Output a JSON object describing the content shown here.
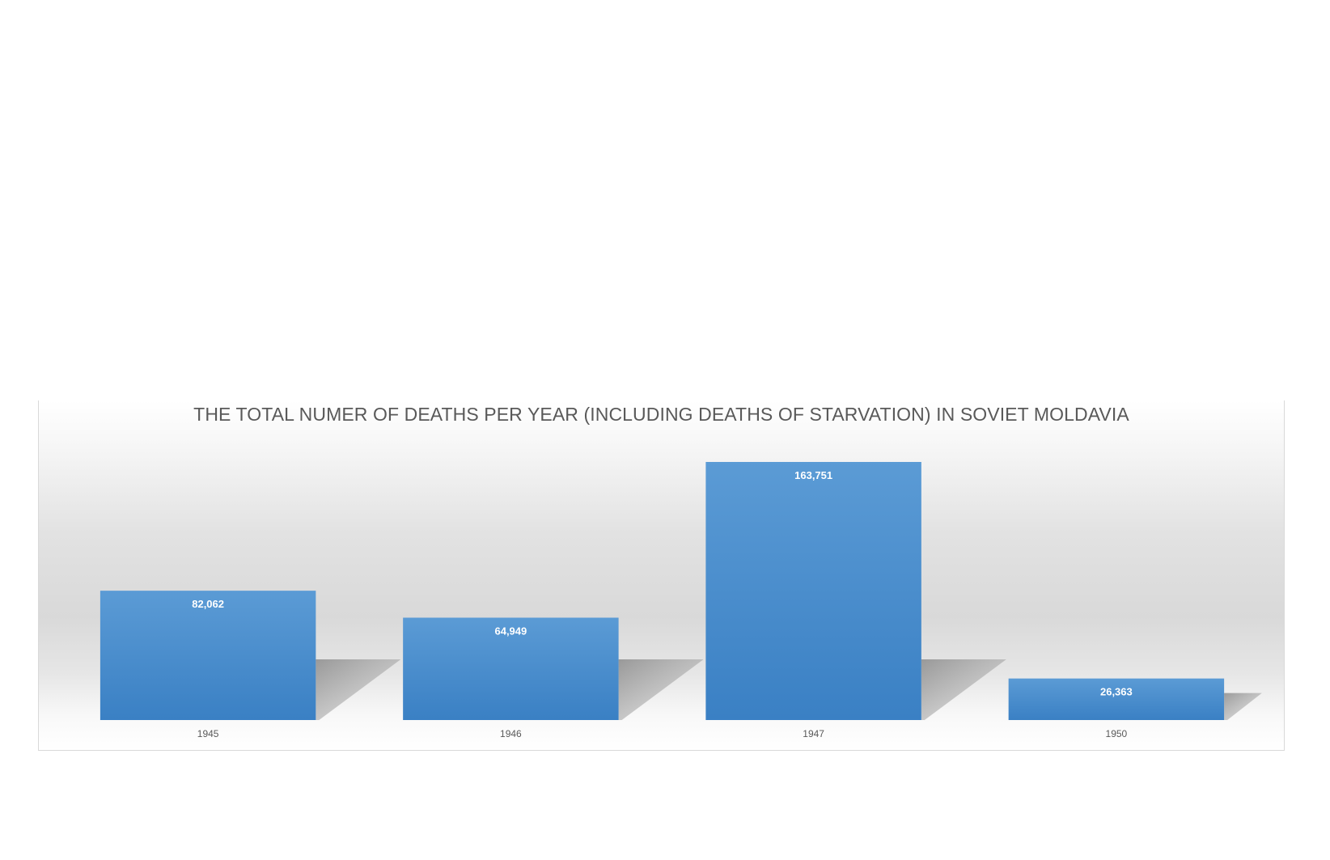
{
  "chart_data": {
    "type": "bar",
    "title": "THE TOTAL NUMER OF DEATHS PER YEAR (INCLUDING DEATHS OF STARVATION) IN SOVIET MOLDAVIA",
    "xlabel": "",
    "ylabel": "",
    "categories": [
      "1945",
      "1946",
      "1947",
      "1950"
    ],
    "values": [
      82062,
      64949,
      163751,
      26363
    ],
    "data_labels": [
      "82,062",
      "64,949",
      "163,751",
      "26,363"
    ],
    "ylim": [
      0,
      163751
    ],
    "grid": false,
    "legend": "none",
    "colors": {
      "bar_top": "#5b9bd5",
      "bar_bottom": "#3a80c4",
      "shadow": "#9a9a9a",
      "title": "#595959",
      "tick_label": "#595959",
      "data_label": "#ffffff"
    }
  }
}
